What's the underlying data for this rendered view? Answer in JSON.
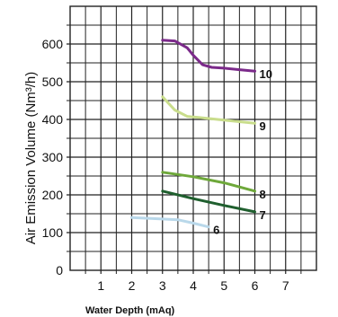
{
  "chart_data": {
    "type": "line",
    "title": "",
    "xlabel": "Water Depth (mAq)",
    "ylabel": "Air Emission Volume (Nm³/h)",
    "xlim": [
      0,
      8
    ],
    "ylim": [
      0,
      600
    ],
    "xticks": [
      "1",
      "2",
      "3",
      "4",
      "5",
      "6",
      "7"
    ],
    "yticks": [
      "0",
      "100",
      "200",
      "300",
      "400",
      "500",
      "600"
    ],
    "grid": true,
    "series": [
      {
        "name": "10",
        "color": "#7b2a8a",
        "x": [
          3.0,
          3.4,
          3.8,
          4.0,
          4.3,
          4.6,
          5.0,
          5.5,
          6.0
        ],
        "y": [
          610,
          608,
          590,
          570,
          545,
          538,
          536,
          532,
          528
        ]
      },
      {
        "name": "9",
        "color": "#c9dd8c",
        "x": [
          3.0,
          3.4,
          3.8,
          4.2,
          5.0,
          6.0
        ],
        "y": [
          460,
          425,
          408,
          405,
          398,
          390
        ]
      },
      {
        "name": "8",
        "color": "#6ea83a",
        "x": [
          3.0,
          4.0,
          5.0,
          6.0
        ],
        "y": [
          260,
          248,
          232,
          210
        ]
      },
      {
        "name": "7",
        "color": "#1f5f2e",
        "x": [
          3.0,
          4.0,
          5.0,
          6.0
        ],
        "y": [
          210,
          190,
          172,
          155
        ]
      },
      {
        "name": "6",
        "color": "#b9d8ea",
        "x": [
          2.0,
          3.0,
          3.5,
          4.0,
          4.5
        ],
        "y": [
          140,
          136,
          134,
          125,
          115
        ]
      }
    ]
  }
}
